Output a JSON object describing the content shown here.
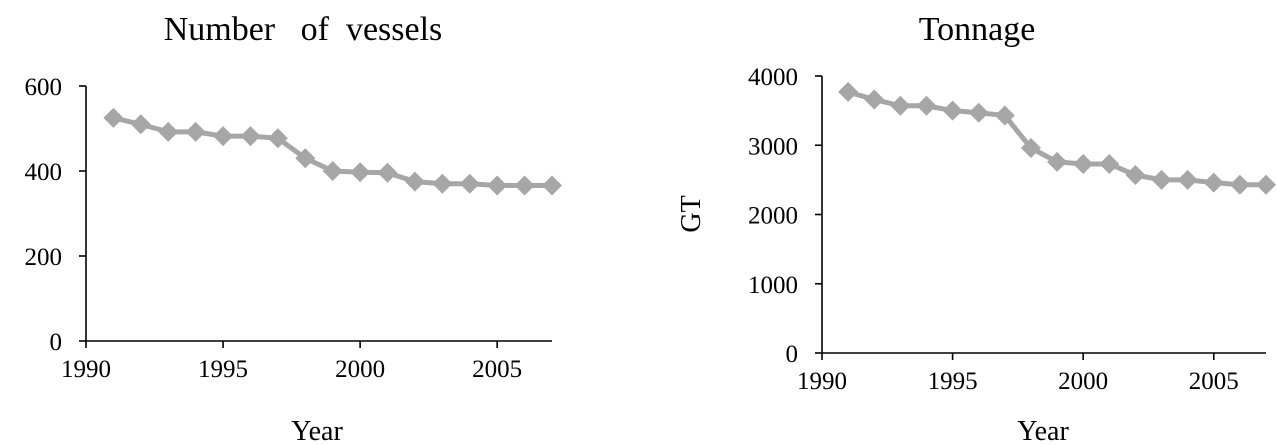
{
  "charts": [
    {
      "title": "Number   of  vessels",
      "xlabel": "Year",
      "ylabel": "",
      "xticks": [
        "1990",
        "1995",
        "2000",
        "2005"
      ],
      "yticks": [
        "0",
        "200",
        "400",
        "600"
      ]
    },
    {
      "title": "Tonnage",
      "xlabel": "Year",
      "ylabel": "GT",
      "xticks": [
        "1990",
        "1995",
        "2000",
        "2005"
      ],
      "yticks": [
        "0",
        "1000",
        "2000",
        "3000",
        "4000"
      ]
    }
  ],
  "series_color": "#a6a6a6",
  "chart_data": [
    {
      "type": "line",
      "title": "Number   of  vessels",
      "xlabel": "Year",
      "ylabel": "",
      "x": [
        1991,
        1992,
        1993,
        1994,
        1995,
        1996,
        1997,
        1998,
        1999,
        2000,
        2001,
        2002,
        2003,
        2004,
        2005,
        2006,
        2007
      ],
      "series": [
        {
          "values": [
            525,
            510,
            492,
            492,
            482,
            482,
            477,
            430,
            400,
            397,
            396,
            375,
            370,
            370,
            366,
            366,
            366
          ]
        }
      ],
      "xlim": [
        1990,
        2007
      ],
      "ylim": [
        0,
        600
      ],
      "grid": false,
      "legend": "none"
    },
    {
      "type": "line",
      "title": "Tonnage",
      "xlabel": "Year",
      "ylabel": "GT",
      "x": [
        1991,
        1992,
        1993,
        1994,
        1995,
        1996,
        1997,
        1998,
        1999,
        2000,
        2001,
        2002,
        2003,
        2004,
        2005,
        2006,
        2007
      ],
      "series": [
        {
          "values": [
            3770,
            3660,
            3570,
            3570,
            3500,
            3470,
            3430,
            2960,
            2760,
            2730,
            2730,
            2570,
            2500,
            2500,
            2460,
            2430,
            2430
          ]
        }
      ],
      "xlim": [
        1990,
        2007
      ],
      "ylim": [
        0,
        4000
      ],
      "grid": false,
      "legend": "none"
    }
  ]
}
